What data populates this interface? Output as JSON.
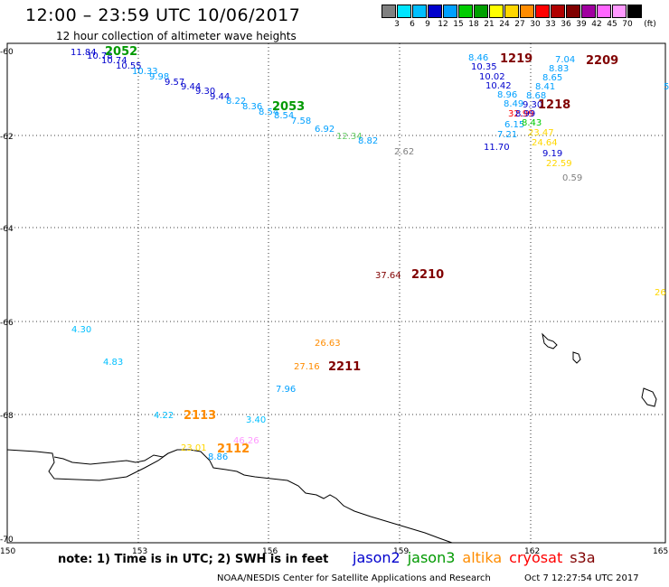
{
  "title": "12:00 – 23:59 UTC 10/06/2017",
  "subtitle": "12 hour collection of altimeter wave heights",
  "scale": {
    "unit": "(ft)",
    "colors": [
      "#808080",
      "#00e5ff",
      "#00bfff",
      "#0000cd",
      "#00a0ff",
      "#00cc00",
      "#00a000",
      "#ffff00",
      "#ffd700",
      "#ff8c00",
      "#ff0000",
      "#b00000",
      "#800000",
      "#a000a0",
      "#ff66ff",
      "#ff99ff",
      "#000000"
    ],
    "labels": [
      "3",
      "6",
      "9",
      "12",
      "15",
      "18",
      "21",
      "24",
      "27",
      "30",
      "33",
      "36",
      "39",
      "42",
      "45",
      "70"
    ]
  },
  "map": {
    "lat_ticks": [
      "-60",
      "-62",
      "-64",
      "-66",
      "-68",
      "-70"
    ],
    "lon_ticks": [
      "150",
      "153",
      "156",
      "159",
      "162",
      "165"
    ],
    "values": [
      {
        "v": "11.84",
        "c": "#0000cd"
      },
      {
        "v": "10.78",
        "c": "#0000cd"
      },
      {
        "v": "10.74",
        "c": "#0000cd"
      },
      {
        "v": "10.55",
        "c": "#0000cd"
      },
      {
        "v": "10.33",
        "c": "#00a0ff"
      },
      {
        "v": "9.98",
        "c": "#00a0ff"
      },
      {
        "v": "9.57",
        "c": "#0000cd"
      },
      {
        "v": "9.44",
        "c": "#0000cd"
      },
      {
        "v": "9.30",
        "c": "#0000cd"
      },
      {
        "v": "9.44",
        "c": "#0000cd"
      },
      {
        "v": "8.22",
        "c": "#00a0ff"
      },
      {
        "v": "8.36",
        "c": "#00a0ff"
      },
      {
        "v": "8.54",
        "c": "#00a0ff"
      },
      {
        "v": "8.54",
        "c": "#00a0ff"
      },
      {
        "v": "7.58",
        "c": "#00a0ff"
      },
      {
        "v": "6.92",
        "c": "#00a0ff"
      },
      {
        "v": "12.34",
        "c": "#66cc66"
      },
      {
        "v": "8.82",
        "c": "#00a0ff"
      },
      {
        "v": "2.62",
        "c": "#808080"
      },
      {
        "v": "8.46",
        "c": "#00a0ff"
      },
      {
        "v": "10.35",
        "c": "#0000cd"
      },
      {
        "v": "10.02",
        "c": "#0000cd"
      },
      {
        "v": "10.42",
        "c": "#0000cd"
      },
      {
        "v": "8.96",
        "c": "#00a0ff"
      },
      {
        "v": "8.49",
        "c": "#00a0ff"
      },
      {
        "v": "32.99",
        "c": "#ff0000"
      },
      {
        "v": "6.15",
        "c": "#00a0ff"
      },
      {
        "v": "7.21",
        "c": "#00a0ff"
      },
      {
        "v": "11.70",
        "c": "#0000cd"
      },
      {
        "v": "7.04",
        "c": "#00a0ff"
      },
      {
        "v": "8.83",
        "c": "#00a0ff"
      },
      {
        "v": "8.65",
        "c": "#00a0ff"
      },
      {
        "v": "8.41",
        "c": "#00a0ff"
      },
      {
        "v": "8.68",
        "c": "#00a0ff"
      },
      {
        "v": "9.30",
        "c": "#0000cd"
      },
      {
        "v": "8.99",
        "c": "#0000cd"
      },
      {
        "v": "8.43",
        "c": "#00cc00"
      },
      {
        "v": "23.47",
        "c": "#ffd700"
      },
      {
        "v": "24.64",
        "c": "#ffd700"
      },
      {
        "v": "9.19",
        "c": "#0000cd"
      },
      {
        "v": "22.59",
        "c": "#ffd700"
      },
      {
        "v": "0.59",
        "c": "#808080"
      },
      {
        "v": "37.64",
        "c": "#800000"
      },
      {
        "v": "26.63",
        "c": "#ff8c00"
      },
      {
        "v": "27.16",
        "c": "#ff8c00"
      },
      {
        "v": "7.96",
        "c": "#00a0ff"
      },
      {
        "v": "4.30",
        "c": "#00bfff"
      },
      {
        "v": "4.83",
        "c": "#00bfff"
      },
      {
        "v": "4.22",
        "c": "#00bfff"
      },
      {
        "v": "3.40",
        "c": "#00bfff"
      },
      {
        "v": "46.26",
        "c": "#ff99ff"
      },
      {
        "v": "23.01",
        "c": "#ffd700"
      },
      {
        "v": "8.86",
        "c": "#00a0ff"
      },
      {
        "v": "26",
        "c": "#ffd700"
      },
      {
        "v": "5",
        "c": "#00a0ff"
      }
    ],
    "passes": [
      {
        "v": "2052",
        "c": "#009900"
      },
      {
        "v": "2053",
        "c": "#009900"
      },
      {
        "v": "1219",
        "c": "#800000"
      },
      {
        "v": "2209",
        "c": "#800000"
      },
      {
        "v": "1218",
        "c": "#800000"
      },
      {
        "v": "2210",
        "c": "#800000"
      },
      {
        "v": "2211",
        "c": "#800000"
      },
      {
        "v": "2113",
        "c": "#ff8c00"
      },
      {
        "v": "2112",
        "c": "#ff8c00"
      }
    ]
  },
  "note": "note: 1) Time is in UTC; 2) SWH is in feet",
  "legend": [
    {
      "name": "jason2",
      "color": "#0000cd"
    },
    {
      "name": "jason3",
      "color": "#009900"
    },
    {
      "name": "altika",
      "color": "#ff8c00"
    },
    {
      "name": "cryosat",
      "color": "#ff0000"
    },
    {
      "name": "s3a",
      "color": "#800000"
    }
  ],
  "credit": "NOAA/NESDIS Center for Satellite Applications and Research",
  "timestamp": "Oct  7 12:27:54 UTC 2017"
}
